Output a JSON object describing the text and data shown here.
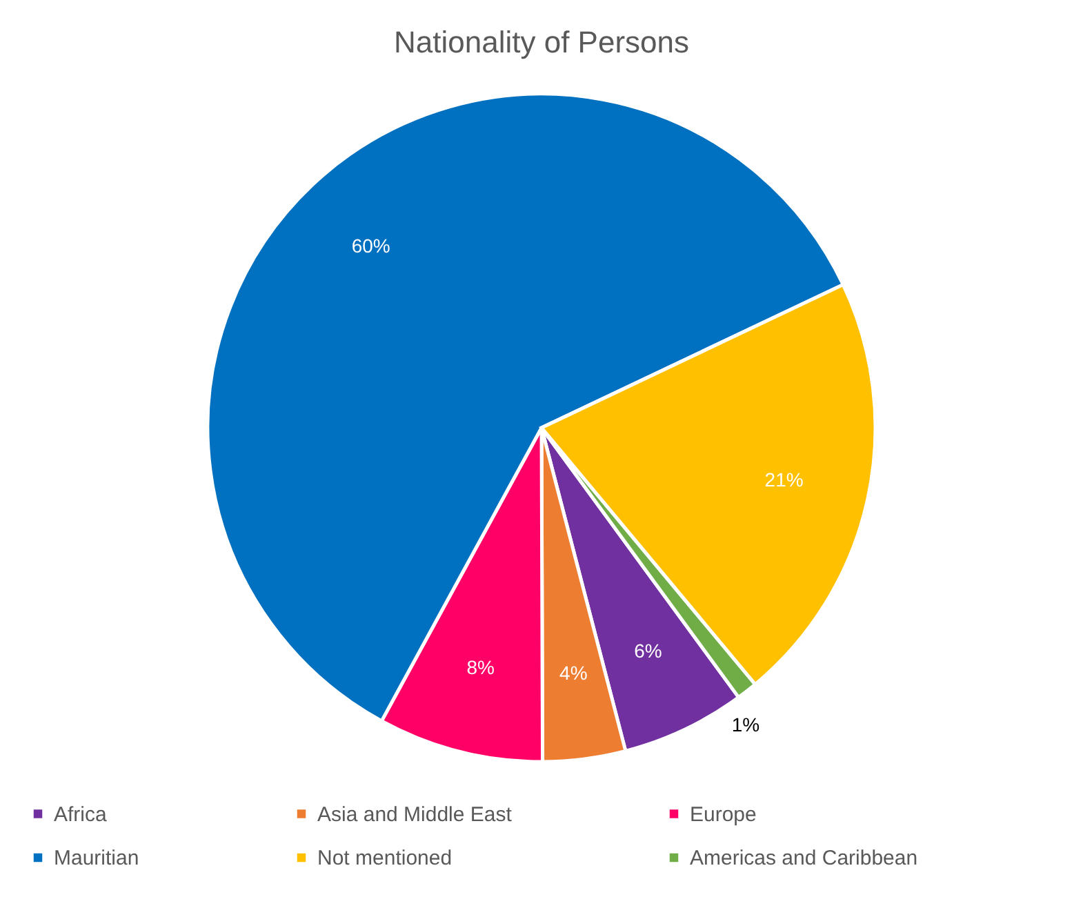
{
  "chart_data": {
    "type": "pie",
    "title": "Nationality of Persons",
    "categories": [
      "Africa",
      "Asia and Middle East",
      "Europe",
      "Mauritian",
      "Not mentioned",
      "Americas and Caribbean"
    ],
    "values": [
      6,
      4,
      8,
      60,
      21,
      1
    ],
    "value_labels": [
      "6%",
      "4%",
      "8%",
      "60%",
      "21%",
      "1%"
    ],
    "colors": [
      "#7030a0",
      "#ed7d31",
      "#ff0066",
      "#0070c0",
      "#ffc000",
      "#70ad47"
    ],
    "legend": "bottom"
  }
}
